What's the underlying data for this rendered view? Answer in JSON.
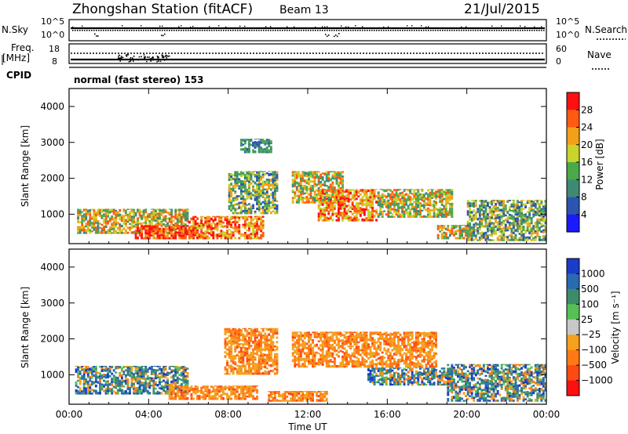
{
  "header": {
    "station": "Zhongshan Station (fitACF)",
    "beam": "Beam 13",
    "date": "21/Jul/2015"
  },
  "strip_panels": {
    "nsky_label": "N.Sky",
    "nsky_ticks": [
      "10^5",
      "10^0"
    ],
    "nsearch_label": "N.Search",
    "nsearch_ticks": [
      "10^5",
      "10^0"
    ],
    "freq_label_1": "Freq.",
    "freq_label_2": "[MHz]",
    "freq_ticks": [
      "18",
      "8"
    ],
    "nave_label": "Nave",
    "nave_ticks": [
      "60",
      "0"
    ],
    "cpid_label": "CPID",
    "cpid_value": "normal (fast stereo) 153"
  },
  "colors": {
    "power_scale": [
      "#1a1aff",
      "#2c55b0",
      "#3f8a74",
      "#4aaa4a",
      "#c8d42a",
      "#f2a01a",
      "#ff5a12",
      "#ff1010"
    ],
    "velocity_scale": [
      "#1a3cc8",
      "#2a6ab0",
      "#3c8c6c",
      "#56c056",
      "#c8c8c8",
      "#f5a01e",
      "#ff7a14",
      "#ff4a14",
      "#ff1010"
    ]
  },
  "chart_data": [
    {
      "type": "heatmap",
      "title": "",
      "xlabel": "Time UT",
      "ylabel": "Slant Range [km]",
      "x_ticks": [
        "00:00",
        "04:00",
        "08:00",
        "12:00",
        "16:00",
        "20:00",
        "00:00"
      ],
      "xlim": [
        0,
        24
      ],
      "y_ticks": [
        "1000",
        "2000",
        "3000",
        "4000"
      ],
      "ylim": [
        180,
        4500
      ],
      "colorbar": {
        "label": "Power [dB]",
        "ticks": [
          "4",
          "8",
          "12",
          "16",
          "20",
          "24",
          "28"
        ],
        "range": [
          0,
          32
        ]
      },
      "regions": [
        {
          "t": [
            0.4,
            6.0
          ],
          "r": [
            450,
            1150
          ],
          "level": "mid"
        },
        {
          "t": [
            3.3,
            6.3
          ],
          "r": [
            300,
            700
          ],
          "level": "high"
        },
        {
          "t": [
            6.0,
            9.8
          ],
          "r": [
            300,
            950
          ],
          "level": "mid-high"
        },
        {
          "t": [
            8.0,
            10.5
          ],
          "r": [
            1000,
            2200
          ],
          "level": "low-mid"
        },
        {
          "t": [
            8.6,
            10.2
          ],
          "r": [
            2700,
            3100
          ],
          "level": "low"
        },
        {
          "t": [
            11.2,
            13.8
          ],
          "r": [
            1300,
            2200
          ],
          "level": "mid"
        },
        {
          "t": [
            12.5,
            15.5
          ],
          "r": [
            800,
            1700
          ],
          "level": "mid-high"
        },
        {
          "t": [
            15.5,
            19.3
          ],
          "r": [
            900,
            1700
          ],
          "level": "mid"
        },
        {
          "t": [
            18.5,
            20.3
          ],
          "r": [
            300,
            700
          ],
          "level": "mid"
        },
        {
          "t": [
            20.0,
            24.0
          ],
          "r": [
            250,
            1400
          ],
          "level": "low-mid"
        }
      ]
    },
    {
      "type": "heatmap",
      "title": "",
      "xlabel": "Time UT",
      "ylabel": "Slant Range [km]",
      "x_ticks": [
        "00:00",
        "04:00",
        "08:00",
        "12:00",
        "16:00",
        "20:00",
        "00:00"
      ],
      "xlim": [
        0,
        24
      ],
      "y_ticks": [
        "1000",
        "2000",
        "3000",
        "4000"
      ],
      "ylim": [
        180,
        4500
      ],
      "colorbar": {
        "label": "Velocity [m s⁻¹]",
        "ticks": [
          "1000",
          "500",
          "100",
          "25",
          "−25",
          "−100",
          "−500",
          "−1000"
        ]
      },
      "regions": [
        {
          "t": [
            0.3,
            6.0
          ],
          "r": [
            450,
            1250
          ],
          "level": "mixed"
        },
        {
          "t": [
            5.0,
            9.5
          ],
          "r": [
            300,
            700
          ],
          "level": "negative"
        },
        {
          "t": [
            7.8,
            10.5
          ],
          "r": [
            1000,
            2300
          ],
          "level": "negative"
        },
        {
          "t": [
            10.0,
            13.0
          ],
          "r": [
            250,
            550
          ],
          "level": "negative"
        },
        {
          "t": [
            11.2,
            18.5
          ],
          "r": [
            1200,
            2200
          ],
          "level": "negative"
        },
        {
          "t": [
            15.0,
            19.3
          ],
          "r": [
            700,
            1200
          ],
          "level": "mixed"
        },
        {
          "t": [
            19.0,
            24.0
          ],
          "r": [
            250,
            1300
          ],
          "level": "mixed"
        }
      ]
    }
  ]
}
